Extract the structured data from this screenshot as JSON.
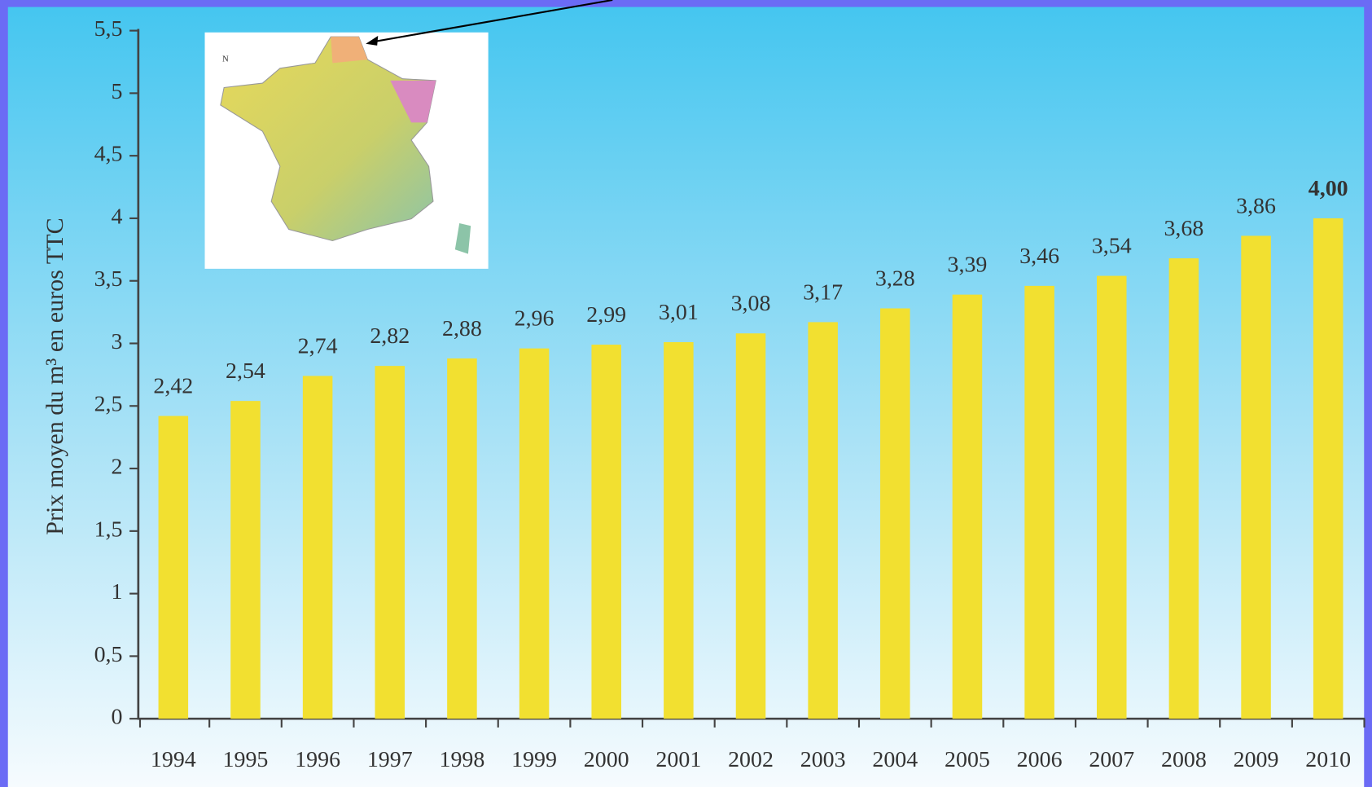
{
  "chart_data": {
    "type": "bar",
    "y_label": "Prix moyen du m³ en euros TTC",
    "categories": [
      "1994",
      "1995",
      "1996",
      "1997",
      "1998",
      "1999",
      "2000",
      "2001",
      "2002",
      "2003",
      "2004",
      "2005",
      "2006",
      "2007",
      "2008",
      "2009",
      "2010"
    ],
    "values": [
      2.42,
      2.54,
      2.74,
      2.82,
      2.88,
      2.96,
      2.99,
      3.01,
      3.08,
      3.17,
      3.28,
      3.39,
      3.46,
      3.54,
      3.68,
      3.86,
      4.0
    ],
    "value_labels": [
      "2,42",
      "2,54",
      "2,74",
      "2,82",
      "2,88",
      "2,96",
      "2,99",
      "3,01",
      "3,08",
      "3,17",
      "3,28",
      "3,39",
      "3,46",
      "3,54",
      "3,68",
      "3,86",
      "4,00"
    ],
    "color": "#f2e030",
    "ylim": [
      0,
      5.5
    ],
    "yticks": [
      0,
      {
        "value": 0.5,
        "label": "0,5"
      },
      1,
      {
        "value": 1.5,
        "label": "1,5"
      },
      2,
      {
        "value": 2.5,
        "label": "2,5"
      },
      3,
      {
        "value": 3.5,
        "label": "3,5"
      },
      4,
      {
        "value": 4.5,
        "label": "4,5"
      },
      5,
      {
        "value": 5.5,
        "label": "5,5"
      }
    ]
  }
}
